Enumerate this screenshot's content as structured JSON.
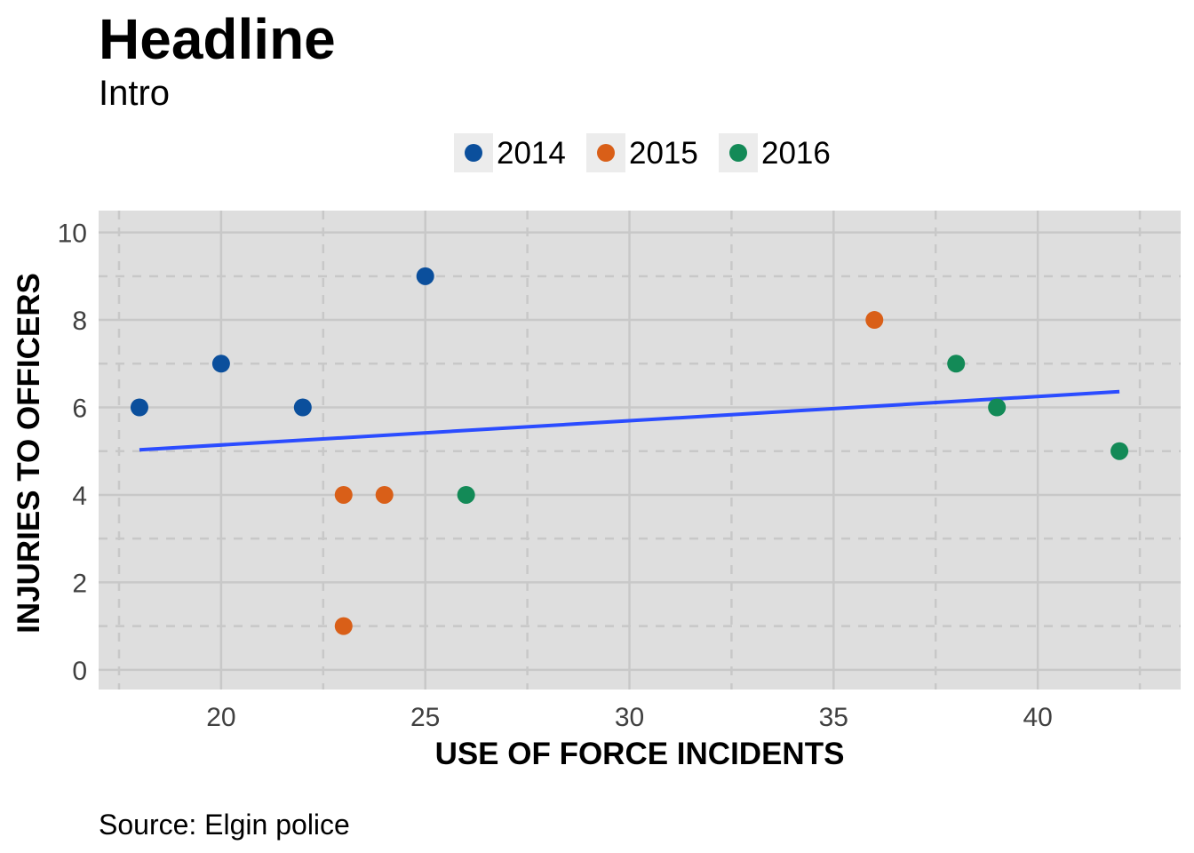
{
  "colors": {
    "panel_background": "#dedede",
    "grid_major": "#c8c8c8",
    "grid_minor": "#c8c8c8",
    "trend_line": "#2b4cff",
    "tick_text": "#404040",
    "title_text": "#000000"
  },
  "chart_data": {
    "type": "scatter",
    "title": "Headline",
    "subtitle": "Intro",
    "caption": "Source: Elgin police",
    "xlabel": "USE OF FORCE INCIDENTS",
    "ylabel": "INJURIES TO OFFICERS",
    "xlim": [
      17,
      43.5
    ],
    "ylim": [
      -0.45,
      10.5
    ],
    "x_ticks": [
      20,
      25,
      30,
      35,
      40
    ],
    "y_ticks": [
      0,
      2,
      4,
      6,
      8,
      10
    ],
    "x_minor_ticks": [
      17.5,
      22.5,
      27.5,
      32.5,
      37.5,
      42.5
    ],
    "y_minor_ticks": [
      1,
      3,
      5,
      7,
      9
    ],
    "grid": true,
    "legend_position": "top",
    "series": [
      {
        "name": "2014",
        "color": "#0b4f9c",
        "points": [
          {
            "x": 18,
            "y": 6
          },
          {
            "x": 20,
            "y": 7
          },
          {
            "x": 22,
            "y": 6
          },
          {
            "x": 25,
            "y": 9
          }
        ]
      },
      {
        "name": "2015",
        "color": "#d95f18",
        "points": [
          {
            "x": 23,
            "y": 4
          },
          {
            "x": 24,
            "y": 4
          },
          {
            "x": 23,
            "y": 1
          },
          {
            "x": 36,
            "y": 8
          }
        ]
      },
      {
        "name": "2016",
        "color": "#138a57",
        "points": [
          {
            "x": 26,
            "y": 4
          },
          {
            "x": 38,
            "y": 7
          },
          {
            "x": 39,
            "y": 6
          },
          {
            "x": 42,
            "y": 5
          }
        ]
      }
    ],
    "trend_line": {
      "type": "linear-fit",
      "points": [
        {
          "x": 18,
          "y": 5.03
        },
        {
          "x": 42,
          "y": 6.36
        }
      ]
    }
  }
}
